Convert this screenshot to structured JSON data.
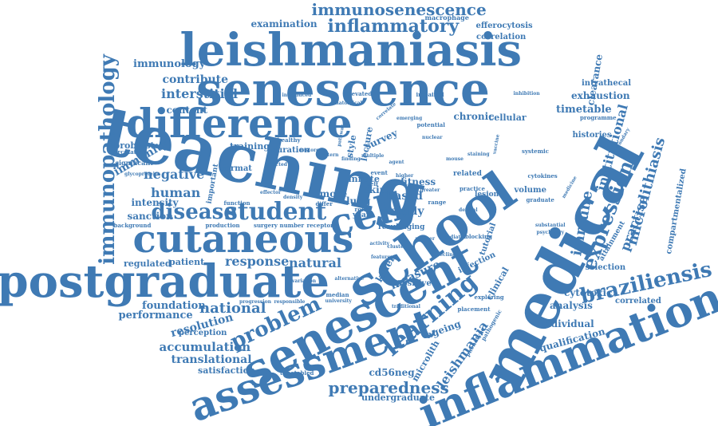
{
  "colors": {
    "word": "#3f7ab4",
    "background": "#ffffff"
  },
  "words": [
    {
      "text": "teaching",
      "weight": 100
    },
    {
      "text": "medical",
      "weight": 95
    },
    {
      "text": "school",
      "weight": 88
    },
    {
      "text": "postgraduate",
      "weight": 86
    },
    {
      "text": "senescent",
      "weight": 80
    },
    {
      "text": "senescence",
      "weight": 78
    },
    {
      "text": "leishmaniasis",
      "weight": 76
    },
    {
      "text": "cutaneous",
      "weight": 72
    },
    {
      "text": "inflammation",
      "weight": 74
    },
    {
      "text": "assessment",
      "weight": 70
    },
    {
      "text": "difference",
      "weight": 66
    },
    {
      "text": "cell",
      "weight": 60
    },
    {
      "text": "immunopathology",
      "weight": 38
    },
    {
      "text": "learning",
      "weight": 42
    },
    {
      "text": "student",
      "weight": 40
    },
    {
      "text": "braziliensis",
      "weight": 36
    },
    {
      "text": "problem",
      "weight": 36
    },
    {
      "text": "disease",
      "weight": 34
    },
    {
      "text": "inflammatory",
      "weight": 32
    },
    {
      "text": "expression",
      "weight": 30
    },
    {
      "text": "preparedness",
      "weight": 28
    },
    {
      "text": "immunosenescence",
      "weight": 28
    },
    {
      "text": "immune",
      "weight": 26
    },
    {
      "text": "national",
      "weight": 24
    },
    {
      "text": "microlithiasis",
      "weight": 24
    },
    {
      "text": "response",
      "weight": 22
    },
    {
      "text": "human",
      "weight": 22
    },
    {
      "text": "leishmania",
      "weight": 22
    },
    {
      "text": "practise",
      "weight": 20
    },
    {
      "text": "natural",
      "weight": 20
    },
    {
      "text": "measure",
      "weight": 20
    },
    {
      "text": "negative",
      "weight": 20
    },
    {
      "text": "institutional",
      "weight": 18
    },
    {
      "text": "interstitial",
      "weight": 18
    },
    {
      "text": "accumulation",
      "weight": 18
    },
    {
      "text": "immunity",
      "weight": 18
    },
    {
      "text": "performance",
      "weight": 17
    },
    {
      "text": "resolution",
      "weight": 17
    },
    {
      "text": "translational",
      "weight": 16
    },
    {
      "text": "foundation",
      "weight": 16
    },
    {
      "text": "contribute",
      "weight": 15
    },
    {
      "text": "immunology",
      "weight": 15
    },
    {
      "text": "examination",
      "weight": 14
    },
    {
      "text": "based",
      "weight": 16
    },
    {
      "text": "study",
      "weight": 16
    },
    {
      "text": "timetable",
      "weight": 14
    },
    {
      "text": "exhaustion",
      "weight": 14
    },
    {
      "text": "cytotoxic",
      "weight": 14
    },
    {
      "text": "analysis",
      "weight": 14
    },
    {
      "text": "individual",
      "weight": 13
    },
    {
      "text": "qualification",
      "weight": 13
    },
    {
      "text": "ageing",
      "weight": 14
    },
    {
      "text": "fitness",
      "weight": 14
    },
    {
      "text": "survey",
      "weight": 14
    },
    {
      "text": "chronic",
      "weight": 13
    },
    {
      "text": "cellular",
      "weight": 12
    },
    {
      "text": "content",
      "weight": 13
    },
    {
      "text": "intensity",
      "weight": 13
    },
    {
      "text": "sanction",
      "weight": 13
    },
    {
      "text": "regulated",
      "weight": 12
    },
    {
      "text": "patient",
      "weight": 12
    },
    {
      "text": "fibroblast",
      "weight": 12
    },
    {
      "text": "training",
      "weight": 12
    },
    {
      "text": "duration",
      "weight": 11
    },
    {
      "text": "lung",
      "weight": 13
    },
    {
      "text": "skin",
      "weight": 13
    },
    {
      "text": "more",
      "weight": 12
    },
    {
      "text": "innate",
      "weight": 12
    },
    {
      "text": "lecture",
      "weight": 11
    },
    {
      "text": "style",
      "weight": 11
    },
    {
      "text": "microlith",
      "weight": 12
    },
    {
      "text": "cd56neg",
      "weight": 12
    },
    {
      "text": "undergraduate",
      "weight": 12
    },
    {
      "text": "satisfaction",
      "weight": 12
    },
    {
      "text": "perception",
      "weight": 11
    },
    {
      "text": "clinical",
      "weight": 12
    },
    {
      "text": "infection",
      "weight": 11
    },
    {
      "text": "tutorial",
      "weight": 11
    },
    {
      "text": "killer",
      "weight": 12
    },
    {
      "text": "positive",
      "weight": 11
    },
    {
      "text": "selection",
      "weight": 11
    },
    {
      "text": "correlated",
      "weight": 11
    },
    {
      "text": "clearance",
      "weight": 12
    },
    {
      "text": "intrathecal",
      "weight": 11
    },
    {
      "text": "compartmentalized",
      "weight": 11
    },
    {
      "text": "attainment",
      "weight": 10
    },
    {
      "text": "histories",
      "weight": 11
    },
    {
      "text": "volume",
      "weight": 11
    },
    {
      "text": "related",
      "weight": 10
    },
    {
      "text": "correlation",
      "weight": 10
    },
    {
      "text": "efferocytosis",
      "weight": 10
    },
    {
      "text": "macrophage",
      "weight": 9
    },
    {
      "text": "sasp",
      "weight": 11
    },
    {
      "text": "year",
      "weight": 10
    },
    {
      "text": "result",
      "weight": 10
    },
    {
      "text": "aging",
      "weight": 10
    },
    {
      "text": "format",
      "weight": 10
    },
    {
      "text": "important",
      "weight": 10
    },
    {
      "text": "significant",
      "weight": 9
    },
    {
      "text": "circulating",
      "weight": 8
    },
    {
      "text": "background",
      "weight": 8
    },
    {
      "text": "production",
      "weight": 9
    },
    {
      "text": "surgery",
      "weight": 9
    },
    {
      "text": "number",
      "weight": 9
    },
    {
      "text": "receptor",
      "weight": 9
    },
    {
      "text": "function",
      "weight": 8
    },
    {
      "text": "healthy",
      "weight": 8
    },
    {
      "text": "elevated",
      "weight": 8
    },
    {
      "text": "impaired",
      "weight": 8
    },
    {
      "text": "potential",
      "weight": 8
    },
    {
      "text": "programme",
      "weight": 8
    },
    {
      "text": "systemic",
      "weight": 8
    },
    {
      "text": "cytokines",
      "weight": 8
    },
    {
      "text": "graduate",
      "weight": 8
    },
    {
      "text": "medicine",
      "weight": 8
    },
    {
      "text": "blocking",
      "weight": 8
    },
    {
      "text": "lesion",
      "weight": 9
    },
    {
      "text": "range",
      "weight": 8
    },
    {
      "text": "practice",
      "weight": 8
    },
    {
      "text": "traditional",
      "weight": 8
    },
    {
      "text": "placement",
      "weight": 8
    },
    {
      "text": "exploring",
      "weight": 8
    },
    {
      "text": "phenotype",
      "weight": 8
    },
    {
      "text": "pathogenic",
      "weight": 8
    },
    {
      "text": "timetabled",
      "weight": 8
    },
    {
      "text": "median",
      "weight": 8
    },
    {
      "text": "university",
      "weight": 8
    },
    {
      "text": "alternative",
      "weight": 7
    },
    {
      "text": "progression",
      "weight": 7
    },
    {
      "text": "responsible",
      "weight": 7
    },
    {
      "text": "variation",
      "weight": 7
    },
    {
      "text": "glycoprotein",
      "weight": 7
    },
    {
      "text": "inhibition",
      "weight": 7
    },
    {
      "text": "psychiatry",
      "weight": 7
    },
    {
      "text": "substantial",
      "weight": 7
    },
    {
      "text": "secondary",
      "weight": 7
    },
    {
      "text": "mediator",
      "weight": 7
    },
    {
      "text": "infected",
      "weight": 7
    },
    {
      "text": "finding",
      "weight": 7
    },
    {
      "text": "event",
      "weight": 8
    },
    {
      "text": "self",
      "weight": 8
    },
    {
      "text": "role",
      "weight": 8
    },
    {
      "text": "feature",
      "weight": 7
    },
    {
      "text": "decline",
      "weight": 7
    },
    {
      "text": "marker",
      "weight": 7
    },
    {
      "text": "activity",
      "weight": 7
    },
    {
      "text": "cluster",
      "weight": 7
    },
    {
      "text": "differ",
      "weight": 7
    },
    {
      "text": "effector",
      "weight": 7
    },
    {
      "text": "density",
      "weight": 7
    },
    {
      "text": "greater",
      "weight": 7
    },
    {
      "text": "nuclear",
      "weight": 7
    },
    {
      "text": "correlate",
      "weight": 7
    },
    {
      "text": "anatomical",
      "weight": 7
    },
    {
      "text": "introduced",
      "weight": 7
    },
    {
      "text": "emerging",
      "weight": 7
    },
    {
      "text": "multiple",
      "weight": 7
    },
    {
      "text": "pattern",
      "weight": 7
    },
    {
      "text": "pathway",
      "weight": 7
    },
    {
      "text": "restore",
      "weight": 7
    },
    {
      "text": "staining",
      "weight": 7
    },
    {
      "text": "vaccine",
      "weight": 7
    },
    {
      "text": "agent",
      "weight": 7
    },
    {
      "text": "higher",
      "weight": 7
    },
    {
      "text": "mouse",
      "weight": 7
    },
    {
      "text": "dermal",
      "weight": 7
    }
  ]
}
